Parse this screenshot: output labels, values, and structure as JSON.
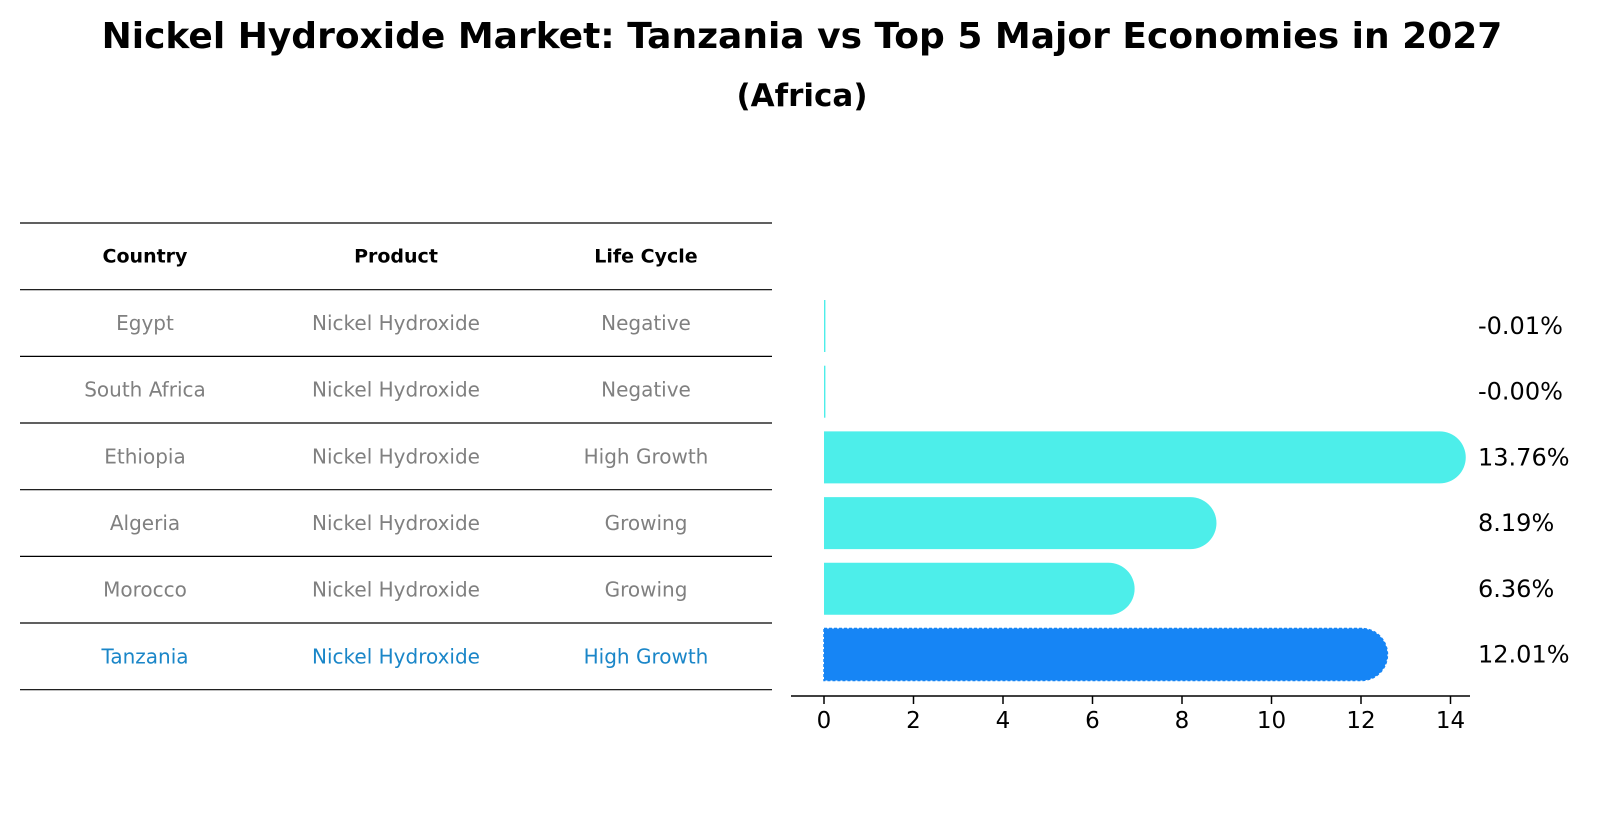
{
  "title": "Nickel Hydroxide Market: Tanzania vs Top 5 Major Economies in 2027",
  "subtitle": "(Africa)",
  "table": {
    "headers": [
      "Country",
      "Product",
      "Life Cycle"
    ],
    "rows": [
      {
        "country": "Egypt",
        "product": "Nickel Hydroxide",
        "life_cycle": "Negative",
        "highlight": false
      },
      {
        "country": "South Africa",
        "product": "Nickel Hydroxide",
        "life_cycle": "Negative",
        "highlight": false
      },
      {
        "country": "Ethiopia",
        "product": "Nickel Hydroxide",
        "life_cycle": "High Growth",
        "highlight": false
      },
      {
        "country": "Algeria",
        "product": "Nickel Hydroxide",
        "life_cycle": "Growing",
        "highlight": false
      },
      {
        "country": "Morocco",
        "product": "Nickel Hydroxide",
        "life_cycle": "Growing",
        "highlight": false
      },
      {
        "country": "Tanzania",
        "product": "Nickel Hydroxide",
        "life_cycle": "High Growth",
        "highlight": true
      }
    ]
  },
  "chart_data": {
    "type": "bar",
    "orientation": "horizontal",
    "categories": [
      "Egypt",
      "South Africa",
      "Ethiopia",
      "Algeria",
      "Morocco",
      "Tanzania"
    ],
    "values": [
      -0.01,
      -0.0,
      13.76,
      8.19,
      6.36,
      12.01
    ],
    "value_labels": [
      "-0.01%",
      "-0.00%",
      "13.76%",
      "8.19%",
      "6.36%",
      "12.01%"
    ],
    "highlight": "Tanzania",
    "xlim": [
      0,
      14
    ],
    "xticks": [
      0,
      2,
      4,
      6,
      8,
      10,
      12,
      14
    ],
    "xlabel": "",
    "ylabel": "",
    "grid": false
  },
  "colors": {
    "bar": "#4deeea",
    "highlight_bar": "#1685f5",
    "row_text": "#808080",
    "highlight_text": "#1a86c8",
    "header_text": "#000000"
  }
}
